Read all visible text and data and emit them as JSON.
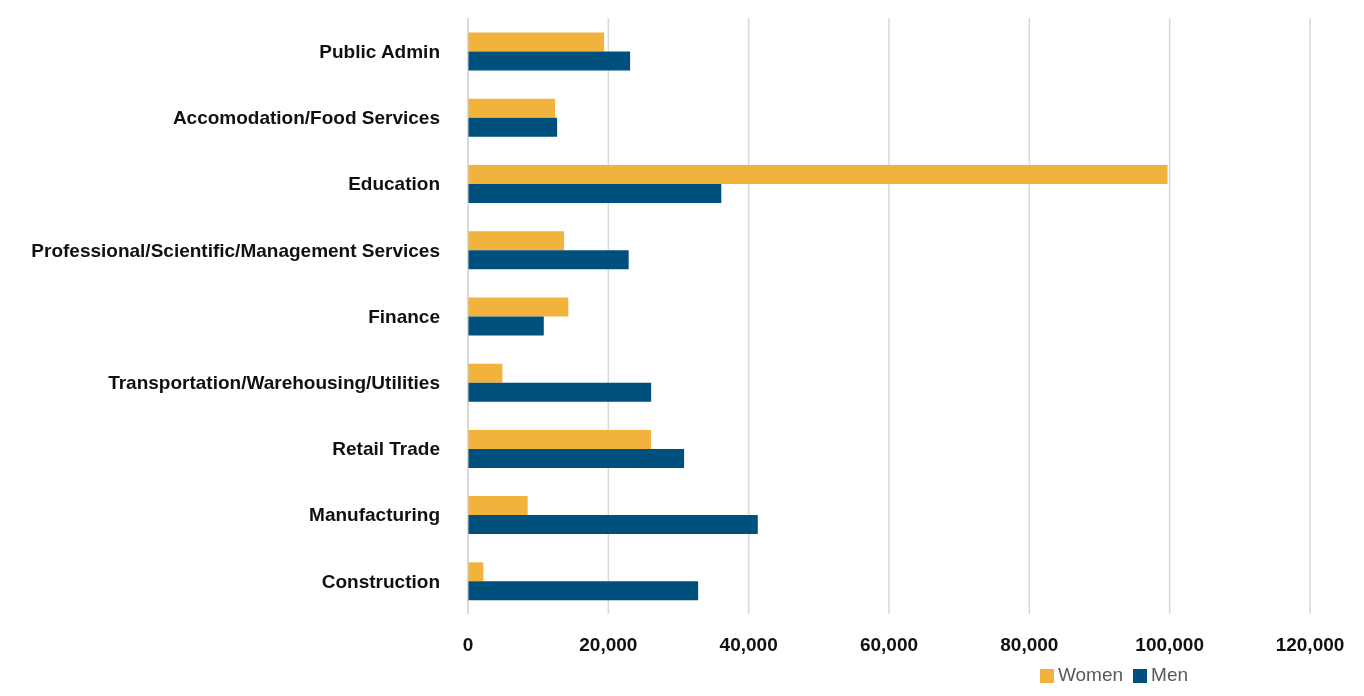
{
  "chart_data": {
    "type": "bar",
    "orientation": "horizontal",
    "categories": [
      "Public Admin",
      "Accomodation/Food Services",
      "Education",
      "Professional/Scientific/Management Services",
      "Finance",
      "Transportation/Warehousing/Utilities",
      "Retail Trade",
      "Manufacturing",
      "Construction"
    ],
    "series": [
      {
        "name": "Women",
        "color": "#f2b33d",
        "values": [
          19400,
          12400,
          99700,
          13700,
          14300,
          4900,
          26100,
          8500,
          2200
        ]
      },
      {
        "name": "Men",
        "color": "#00507d",
        "values": [
          23100,
          12700,
          36100,
          22900,
          10800,
          26100,
          30800,
          41300,
          32800
        ]
      }
    ],
    "xlim": [
      0,
      120000
    ],
    "xticks": [
      0,
      {
        "value": 20000,
        "label": "20,000"
      },
      {
        "value": 40000,
        "label": "40,000"
      },
      {
        "value": 60000,
        "label": "60,000"
      },
      {
        "value": 80000,
        "label": "80,000"
      },
      {
        "value": 100000,
        "label": "100,000"
      },
      {
        "value": 120000,
        "label": "120,000"
      }
    ],
    "grid": "x",
    "legend": "bottom"
  }
}
